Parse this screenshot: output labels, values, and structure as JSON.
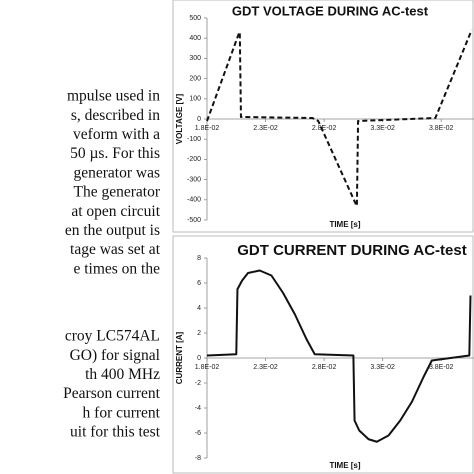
{
  "text": {
    "paragraphs": [
      [
        "mpulse used in",
        "s, described in",
        "veform with a",
        "50 µs. For this",
        "generator was",
        "The generator",
        "at open circuit",
        "en the output is",
        "tage was set at",
        "e times on the"
      ],
      [
        "croy LC574AL",
        "GO) for signal",
        "th 400 MHz",
        "Pearson current",
        "h for current",
        "uit for this test"
      ]
    ]
  },
  "chart_data": [
    {
      "type": "line",
      "title": "GDT VOLTAGE DURING AC-test",
      "xlabel": "TIME [s]",
      "ylabel": "VOLTAGE [V]",
      "line_style": "dashed",
      "color": "#111111",
      "grid": false,
      "x": [
        0.018,
        0.0207,
        0.0208,
        0.0209,
        0.027,
        0.0275,
        0.0307,
        0.0308,
        0.0309,
        0.0375,
        0.0406
      ],
      "values": [
        -10,
        420,
        430,
        10,
        5,
        -10,
        -420,
        -430,
        -10,
        5,
        440
      ],
      "xlim": [
        0.018,
        0.0408
      ],
      "ylim": [
        -500,
        500
      ],
      "xticks": [
        {
          "value": 0.018,
          "label": "1.8E-02"
        },
        {
          "value": 0.023,
          "label": "2.3E-02"
        },
        {
          "value": 0.028,
          "label": "2.8E-02"
        },
        {
          "value": 0.033,
          "label": "3.3E-02"
        },
        {
          "value": 0.038,
          "label": "3.8E-02"
        }
      ],
      "yticks": [
        500,
        400,
        300,
        200,
        100,
        0,
        -100,
        -200,
        -300,
        -400,
        -500
      ]
    },
    {
      "type": "line",
      "title": "GDT CURRENT DURING AC-test",
      "xlabel": "TIME [s]",
      "ylabel": "CURRENT [A]",
      "line_style": "solid",
      "color": "#111111",
      "grid": false,
      "x": [
        0.018,
        0.0205,
        0.0206,
        0.021,
        0.0215,
        0.0225,
        0.0235,
        0.0245,
        0.0255,
        0.0265,
        0.0272,
        0.0305,
        0.0306,
        0.031,
        0.0318,
        0.0325,
        0.0335,
        0.0345,
        0.0355,
        0.0365,
        0.0372,
        0.0404,
        0.0405
      ],
      "values": [
        0.2,
        0.3,
        5.5,
        6.2,
        6.8,
        7,
        6.6,
        5.2,
        3.5,
        1.5,
        0.3,
        0.2,
        -5,
        -5.8,
        -6.5,
        -6.7,
        -6.2,
        -5,
        -3.5,
        -1.5,
        -0.2,
        0.2,
        5
      ],
      "xlim": [
        0.018,
        0.0408
      ],
      "ylim": [
        -8,
        8
      ],
      "xticks": [
        {
          "value": 0.018,
          "label": "1.8E-02"
        },
        {
          "value": 0.023,
          "label": "2.3E-02"
        },
        {
          "value": 0.028,
          "label": "2.8E-02"
        },
        {
          "value": 0.033,
          "label": "3.3E-02"
        },
        {
          "value": 0.038,
          "label": "3.8E-02"
        }
      ],
      "yticks": [
        8,
        6,
        4,
        2,
        0,
        -2,
        -4,
        -6,
        -8
      ]
    }
  ]
}
